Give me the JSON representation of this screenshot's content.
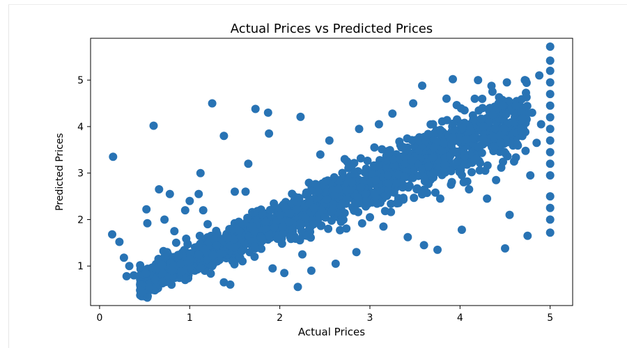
{
  "chart_data": {
    "type": "scatter",
    "title": "Actual Prices vs Predicted Prices",
    "xlabel": "Actual Prices",
    "ylabel": "Predicted Prices",
    "xlim": [
      -0.1,
      5.25
    ],
    "ylim": [
      0.15,
      5.9
    ],
    "xticks": [
      0,
      1,
      2,
      3,
      4,
      5
    ],
    "yticks": [
      1,
      2,
      3,
      4,
      5
    ],
    "grid": false,
    "legend": "none",
    "marker_color": "#2873b4",
    "series": [
      {
        "points": [
          [
            0.15,
            3.35
          ],
          [
            0.6,
            4.02
          ],
          [
            1.25,
            4.5
          ],
          [
            1.38,
            3.8
          ],
          [
            1.73,
            4.38
          ],
          [
            1.87,
            4.3
          ],
          [
            1.88,
            3.85
          ],
          [
            2.23,
            4.21
          ],
          [
            0.14,
            1.68
          ],
          [
            0.22,
            1.52
          ],
          [
            0.27,
            1.18
          ],
          [
            0.33,
            1.0
          ],
          [
            0.38,
            0.8
          ],
          [
            0.45,
            0.6
          ],
          [
            0.53,
            0.32
          ],
          [
            0.3,
            0.78
          ],
          [
            0.52,
            2.22
          ],
          [
            0.53,
            1.92
          ],
          [
            0.66,
            2.65
          ],
          [
            0.72,
            2.0
          ],
          [
            0.78,
            2.55
          ],
          [
            0.83,
            1.75
          ],
          [
            0.95,
            2.2
          ],
          [
            1.0,
            2.4
          ],
          [
            1.06,
            1.4
          ],
          [
            1.1,
            2.55
          ],
          [
            1.12,
            3.0
          ],
          [
            1.15,
            2.2
          ],
          [
            1.2,
            1.9
          ],
          [
            0.95,
            0.7
          ],
          [
            1.25,
            1.0
          ],
          [
            1.38,
            0.65
          ],
          [
            1.45,
            0.6
          ],
          [
            1.42,
            1.6
          ],
          [
            1.5,
            2.6
          ],
          [
            1.62,
            2.6
          ],
          [
            1.65,
            3.2
          ],
          [
            1.72,
            1.2
          ],
          [
            1.84,
            1.95
          ],
          [
            1.92,
            0.95
          ],
          [
            2.0,
            2.1
          ],
          [
            2.05,
            0.85
          ],
          [
            2.2,
            0.55
          ],
          [
            2.25,
            1.25
          ],
          [
            2.3,
            1.65
          ],
          [
            2.35,
            0.9
          ],
          [
            2.38,
            2.25
          ],
          [
            2.45,
            3.4
          ],
          [
            2.5,
            2.05
          ],
          [
            2.55,
            3.7
          ],
          [
            2.62,
            1.05
          ],
          [
            2.68,
            1.95
          ],
          [
            2.72,
            3.3
          ],
          [
            2.8,
            2.8
          ],
          [
            2.85,
            1.3
          ],
          [
            2.88,
            3.95
          ],
          [
            2.95,
            2.55
          ],
          [
            3.0,
            2.05
          ],
          [
            3.05,
            3.55
          ],
          [
            3.1,
            4.05
          ],
          [
            3.15,
            1.85
          ],
          [
            3.2,
            2.95
          ],
          [
            3.25,
            4.28
          ],
          [
            3.3,
            2.35
          ],
          [
            3.35,
            3.55
          ],
          [
            3.42,
            1.62
          ],
          [
            3.48,
            4.5
          ],
          [
            3.52,
            2.65
          ],
          [
            3.58,
            4.88
          ],
          [
            3.6,
            1.45
          ],
          [
            3.65,
            3.15
          ],
          [
            3.7,
            4.05
          ],
          [
            3.75,
            1.35
          ],
          [
            3.78,
            2.45
          ],
          [
            3.82,
            3.65
          ],
          [
            3.85,
            4.6
          ],
          [
            3.9,
            2.75
          ],
          [
            3.92,
            5.02
          ],
          [
            3.97,
            3.25
          ],
          [
            4.02,
            1.78
          ],
          [
            4.05,
            4.35
          ],
          [
            4.1,
            2.65
          ],
          [
            4.15,
            3.75
          ],
          [
            4.2,
            5.0
          ],
          [
            4.25,
            4.4
          ],
          [
            4.28,
            3.05
          ],
          [
            4.3,
            2.45
          ],
          [
            4.36,
            4.75
          ],
          [
            4.4,
            2.85
          ],
          [
            4.45,
            3.65
          ],
          [
            4.5,
            1.38
          ],
          [
            4.52,
            4.95
          ],
          [
            4.55,
            2.1
          ],
          [
            4.6,
            3.25
          ],
          [
            4.62,
            4.45
          ],
          [
            4.68,
            3.9
          ],
          [
            4.72,
            5.0
          ],
          [
            4.75,
            1.65
          ],
          [
            4.78,
            2.95
          ],
          [
            4.8,
            4.3
          ],
          [
            4.85,
            3.65
          ],
          [
            4.88,
            5.1
          ],
          [
            4.9,
            4.05
          ],
          [
            5.0,
            1.72
          ],
          [
            5.0,
            2.0
          ],
          [
            5.0,
            2.25
          ],
          [
            5.0,
            2.5
          ],
          [
            5.0,
            2.95
          ],
          [
            5.0,
            3.2
          ],
          [
            5.0,
            3.45
          ],
          [
            5.0,
            3.7
          ],
          [
            5.0,
            3.95
          ],
          [
            5.0,
            4.2
          ],
          [
            5.0,
            4.45
          ],
          [
            5.0,
            4.7
          ],
          [
            5.0,
            4.95
          ],
          [
            5.0,
            5.2
          ],
          [
            5.0,
            5.42
          ],
          [
            5.0,
            5.72
          ],
          [
            0.45,
            0.48
          ],
          [
            0.55,
            0.55
          ],
          [
            0.62,
            0.7
          ],
          [
            0.7,
            0.65
          ],
          [
            0.8,
            0.9
          ],
          [
            0.9,
            1.05
          ],
          [
            1.0,
            1.15
          ],
          [
            1.1,
            1.25
          ],
          [
            0.75,
            1.3
          ],
          [
            0.85,
            1.5
          ],
          [
            1.3,
            1.45
          ],
          [
            1.5,
            1.4
          ],
          [
            1.55,
            1.75
          ],
          [
            1.7,
            1.85
          ],
          [
            1.8,
            1.6
          ],
          [
            2.1,
            1.95
          ]
        ]
      }
    ]
  }
}
